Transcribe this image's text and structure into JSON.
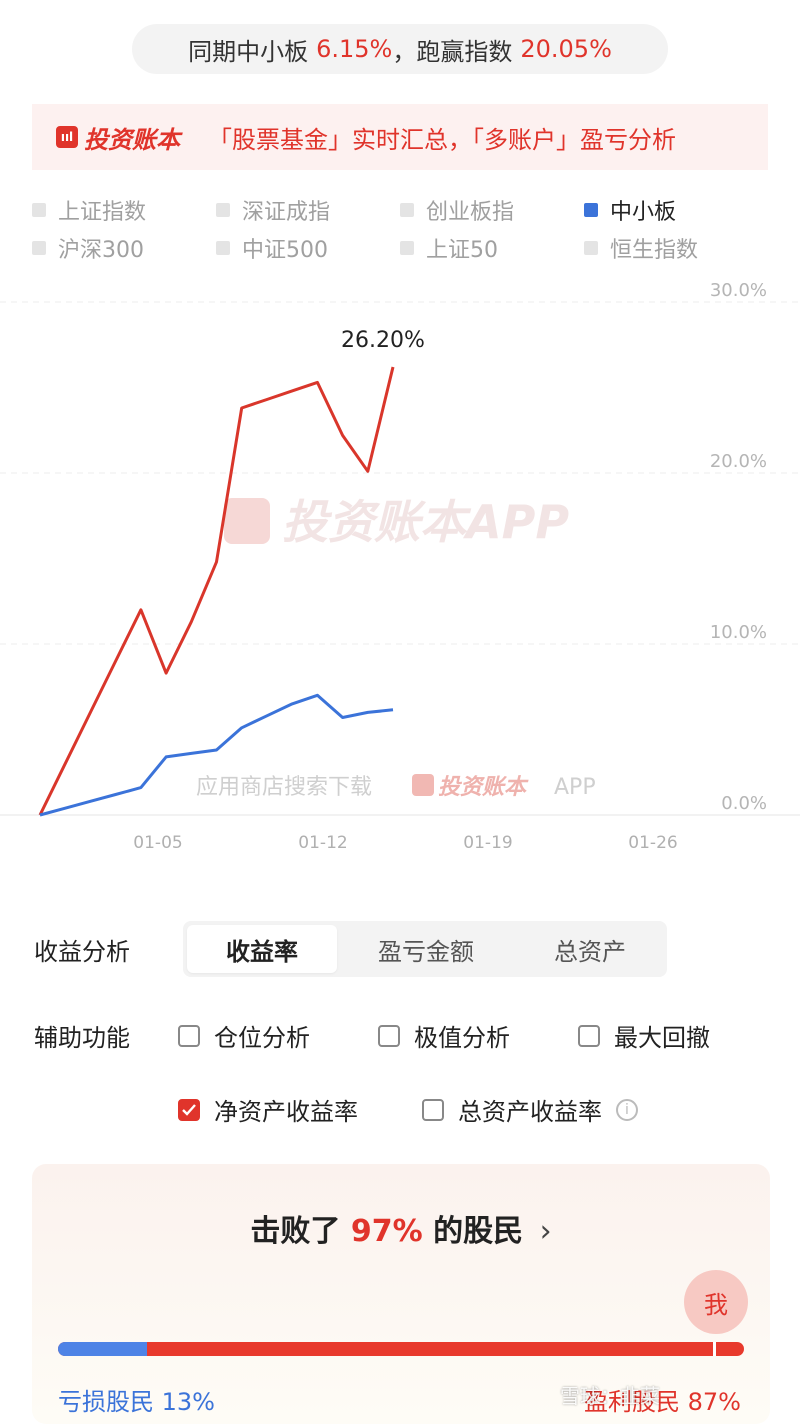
{
  "summary": {
    "prefix": "同期中小板",
    "index_value": "6.15%",
    "mid": "，跑赢指数",
    "beat_value": "20.05%"
  },
  "promo": {
    "logo_icon": "ııl",
    "logo_text": "投资账本",
    "text": "「股票基金」实时汇总，「多账户」盈亏分析"
  },
  "legend": [
    {
      "label": "上证指数",
      "active": false
    },
    {
      "label": "深证成指",
      "active": false
    },
    {
      "label": "创业板指",
      "active": false
    },
    {
      "label": "中小板",
      "active": true
    },
    {
      "label": "沪深300",
      "active": false
    },
    {
      "label": "中证500",
      "active": false
    },
    {
      "label": "上证50",
      "active": false
    },
    {
      "label": "恒生指数",
      "active": false
    }
  ],
  "chart_data": {
    "type": "line",
    "x": [
      "01-01",
      "01-02",
      "01-03",
      "01-04",
      "01-05",
      "01-06",
      "01-07",
      "01-08",
      "01-09",
      "01-10",
      "01-11",
      "01-12",
      "01-13",
      "01-14",
      "01-15"
    ],
    "series": [
      {
        "color": "#d9362b",
        "values": [
          0.0,
          3.0,
          6.0,
          9.0,
          12.0,
          8.3,
          11.3,
          14.8,
          23.8,
          24.3,
          24.8,
          25.3,
          22.2,
          20.1,
          26.2
        ]
      },
      {
        "color": "#3b73d9",
        "values": [
          0.0,
          0.4,
          0.8,
          1.2,
          1.6,
          3.4,
          3.6,
          3.8,
          5.1,
          5.8,
          6.5,
          7.0,
          5.7,
          6.0,
          6.15
        ]
      }
    ],
    "xticks": [
      "01-05",
      "01-12",
      "01-19",
      "01-26"
    ],
    "yticks": [
      "0.0%",
      "10.0%",
      "20.0%",
      "30.0%"
    ],
    "ylim": [
      0,
      30
    ],
    "peak_label": "26.20%",
    "watermark_main": "投资账本APP",
    "watermark_sub": "应用商店搜索下载",
    "watermark_sub_brand": "投资账本",
    "watermark_sub_app": "APP",
    "grid": true
  },
  "analysis": {
    "label": "收益分析",
    "tabs": [
      {
        "label": "收益率",
        "active": true
      },
      {
        "label": "盈亏金额",
        "active": false
      },
      {
        "label": "总资产",
        "active": false
      }
    ]
  },
  "aux": {
    "label": "辅助功能",
    "options": [
      {
        "label": "仓位分析",
        "checked": false
      },
      {
        "label": "极值分析",
        "checked": false
      },
      {
        "label": "最大回撤",
        "checked": false
      }
    ],
    "rate_options": [
      {
        "label": "净资产收益率",
        "checked": true
      },
      {
        "label": "总资产收益率",
        "checked": false
      }
    ],
    "info_icon": "i"
  },
  "beat": {
    "prefix": "击败了",
    "percent": "97%",
    "suffix": "的股民",
    "arrow": "›",
    "me": "我",
    "loss_label": "亏损股民 13%",
    "profit_label": "盈利股民 87%",
    "loss_share": 0.13,
    "my_position": 0.97
  },
  "corner_watermark": "雪球：韭菜"
}
